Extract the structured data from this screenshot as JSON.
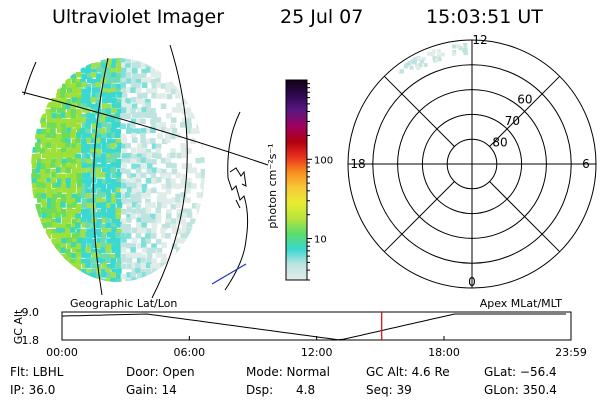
{
  "header": {
    "title": "Ultraviolet Imager",
    "date": "25 Jul 07",
    "time": "15:03:51 UT"
  },
  "colorbar": {
    "unit_label": "photon cm⁻²s⁻¹",
    "ticks": [
      {
        "label": "10",
        "value": 10
      },
      {
        "label": "100",
        "value": 100
      }
    ],
    "min_value": 3,
    "max_value": 1000,
    "stops": [
      "#e0ece8",
      "#bfe4e0",
      "#3ad8d0",
      "#5cdc6c",
      "#b8e43c",
      "#e8ec30",
      "#f8c838",
      "#f89020",
      "#e83020",
      "#b00010",
      "#a00060",
      "#5a1880",
      "#300850",
      "#100018"
    ]
  },
  "polar_plot": {
    "mlt_labels": [
      {
        "label": "12",
        "angle": 0
      },
      {
        "label": "6",
        "angle": 90
      },
      {
        "label": "0",
        "angle": 180
      },
      {
        "label": "18",
        "angle": 270
      }
    ],
    "lat_rings": [
      {
        "label": "80",
        "lat": 80
      },
      {
        "label": "70",
        "lat": 70
      },
      {
        "label": "60",
        "lat": 60
      },
      {
        "lat": 50
      }
    ],
    "outer_lat": 40
  },
  "timeline": {
    "y_axis_label": "GC Alt",
    "y_ticks": [
      "9.0",
      "1.8"
    ],
    "left_caption": "Geographic Lat/Lon",
    "right_caption": "Apex MLat/MLT",
    "x_ticks": [
      "00:00",
      "06:00",
      "12:00",
      "18:00",
      "23:59"
    ],
    "x_hours": [
      0,
      6,
      12,
      18,
      23.983
    ],
    "current_hour": 15.064,
    "min_hour": 13.1
  },
  "info": {
    "flt": "Flt: LBHL",
    "ip": "IP: 36.0",
    "door": "Door: Open",
    "gain": "Gain: 14",
    "mode": "Mode: Normal",
    "dsp": "Dsp:      4.8",
    "gc_alt": "GC Alt: 4.6 Re",
    "seq": "Seq: 39",
    "glat": "GLat: −56.4",
    "glon": "GLon: 350.4"
  }
}
